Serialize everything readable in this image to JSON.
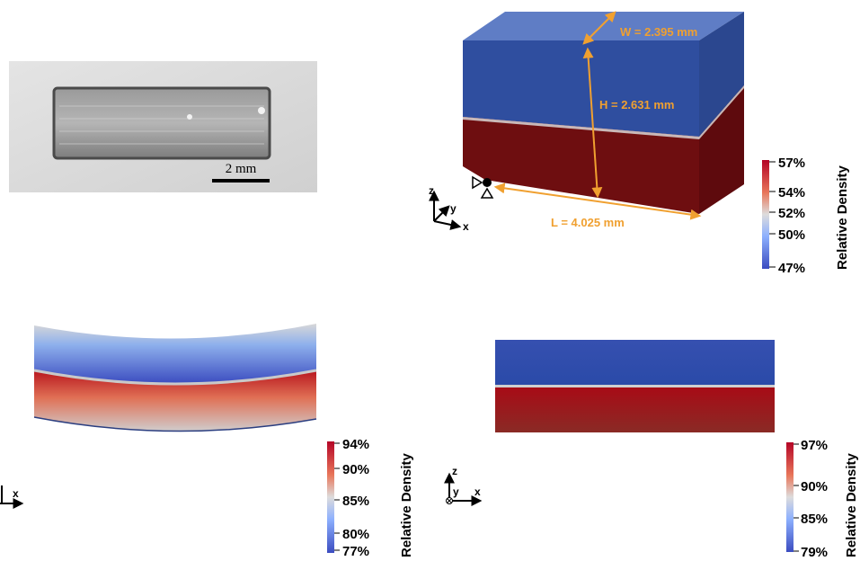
{
  "photo": {
    "scale_label": "2 mm"
  },
  "geometry": {
    "width_label": "W = 2.395 mm",
    "height_label": "H = 2.631 mm",
    "length_label": "L = 4.025 mm",
    "axes": [
      "x",
      "y",
      "z"
    ]
  },
  "colorbars": [
    {
      "title": "Relative Density",
      "ticks": [
        "57%",
        "54%",
        "52%",
        "50%",
        "47%"
      ]
    },
    {
      "title": "Relative Density",
      "ticks": [
        "94%",
        "90%",
        "85%",
        "80%",
        "77%"
      ]
    },
    {
      "title": "Relative Density",
      "ticks": [
        "97%",
        "90%",
        "85%",
        "79%"
      ]
    }
  ],
  "view_axes": {
    "bottom_left": [
      "x"
    ],
    "bottom_right": [
      "z",
      "y",
      "x"
    ]
  },
  "colors": {
    "dimension": "#F0A030",
    "blue": "#2F4E9F",
    "red": "#6E0E10"
  }
}
